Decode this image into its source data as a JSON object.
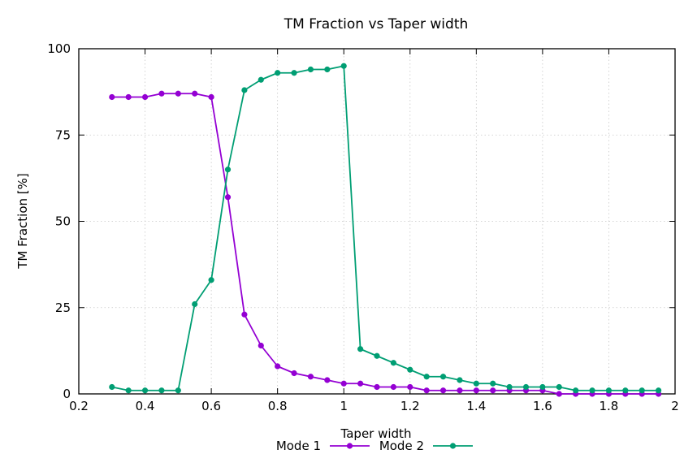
{
  "chart_data": {
    "type": "line",
    "title": "TM Fraction vs Taper width",
    "xlabel": "Taper width",
    "ylabel": "TM Fraction [%]",
    "xlim": [
      0.2,
      2
    ],
    "ylim": [
      0,
      100
    ],
    "xticks": [
      "0.2",
      "0.4",
      "0.6",
      "0.8",
      "1",
      "1.2",
      "1.4",
      "1.6",
      "1.8",
      "2"
    ],
    "yticks": [
      "0",
      "25",
      "50",
      "75",
      "100"
    ],
    "grid": true,
    "legend_position": "bottom-center",
    "x": [
      0.3,
      0.35,
      0.4,
      0.45,
      0.5,
      0.55,
      0.6,
      0.65,
      0.7,
      0.75,
      0.8,
      0.85,
      0.9,
      0.95,
      1.0,
      1.05,
      1.1,
      1.15,
      1.2,
      1.25,
      1.3,
      1.35,
      1.4,
      1.45,
      1.5,
      1.55,
      1.6,
      1.65,
      1.7,
      1.75,
      1.8,
      1.85,
      1.9,
      1.95
    ],
    "series": [
      {
        "name": "Mode 1",
        "color": "#9400d3",
        "values": [
          86,
          86,
          86,
          87,
          87,
          87,
          86,
          57,
          23,
          14,
          8,
          6,
          5,
          4,
          3,
          3,
          2,
          2,
          2,
          1,
          1,
          1,
          1,
          1,
          1,
          1,
          1,
          0,
          0,
          0,
          0,
          0,
          0,
          0
        ]
      },
      {
        "name": "Mode 2",
        "color": "#009e73",
        "values": [
          2,
          1,
          1,
          1,
          1,
          26,
          33,
          65,
          88,
          91,
          93,
          93,
          94,
          94,
          95,
          13,
          11,
          9,
          7,
          5,
          5,
          4,
          3,
          3,
          2,
          2,
          2,
          2,
          1,
          1,
          1,
          1,
          1,
          1
        ]
      }
    ]
  }
}
